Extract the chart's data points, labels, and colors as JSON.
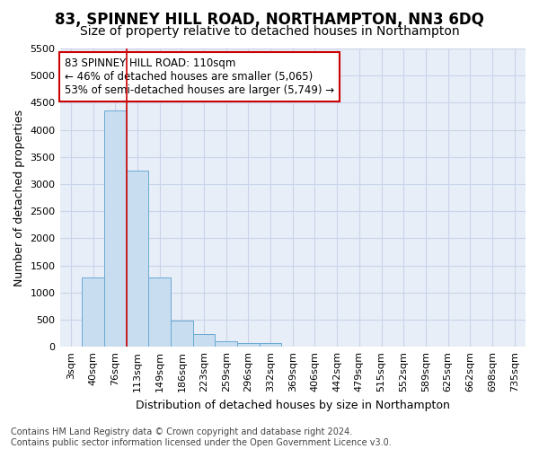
{
  "title": "83, SPINNEY HILL ROAD, NORTHAMPTON, NN3 6DQ",
  "subtitle": "Size of property relative to detached houses in Northampton",
  "xlabel": "Distribution of detached houses by size in Northampton",
  "ylabel": "Number of detached properties",
  "categories": [
    "3sqm",
    "40sqm",
    "76sqm",
    "113sqm",
    "149sqm",
    "186sqm",
    "223sqm",
    "259sqm",
    "296sqm",
    "332sqm",
    "369sqm",
    "406sqm",
    "442sqm",
    "479sqm",
    "515sqm",
    "552sqm",
    "589sqm",
    "625sqm",
    "662sqm",
    "698sqm",
    "735sqm"
  ],
  "values": [
    0,
    1275,
    4350,
    3250,
    1275,
    480,
    240,
    100,
    75,
    75,
    0,
    0,
    0,
    0,
    0,
    0,
    0,
    0,
    0,
    0,
    0
  ],
  "bar_color": "#c9ddf0",
  "bar_edge_color": "#6aaad4",
  "vline_x_index": 3,
  "vline_color": "#cc0000",
  "ylim": [
    0,
    5500
  ],
  "yticks": [
    0,
    500,
    1000,
    1500,
    2000,
    2500,
    3000,
    3500,
    4000,
    4500,
    5000,
    5500
  ],
  "annotation_text": "83 SPINNEY HILL ROAD: 110sqm\n← 46% of detached houses are smaller (5,065)\n53% of semi-detached houses are larger (5,749) →",
  "annotation_box_color": "#ffffff",
  "annotation_box_edge": "#cc0000",
  "footer": "Contains HM Land Registry data © Crown copyright and database right 2024.\nContains public sector information licensed under the Open Government Licence v3.0.",
  "grid_color": "#c8d4e8",
  "background_color": "#e8eef8",
  "title_fontsize": 12,
  "subtitle_fontsize": 10,
  "axis_label_fontsize": 9,
  "tick_fontsize": 8,
  "annotation_fontsize": 8.5,
  "footer_fontsize": 7
}
